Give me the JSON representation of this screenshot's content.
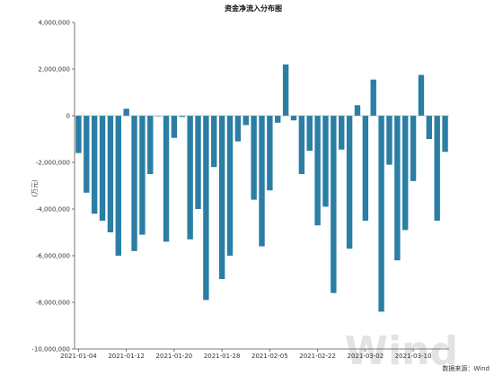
{
  "chart_data": {
    "type": "bar",
    "title": "资金净流入分布图",
    "ylabel": "(万元)",
    "xlabel": "",
    "ylim": [
      -10000000,
      4000000
    ],
    "yticks": [
      4000000,
      2000000,
      0,
      -2000000,
      -4000000,
      -6000000,
      -8000000,
      -10000000
    ],
    "ytick_labels": [
      "4,000,000",
      "2,000,000",
      "0",
      "-2,000,000",
      "-4,000,000",
      "-6,000,000",
      "-8,000,000",
      "-10,000,000"
    ],
    "xtick_labels": [
      {
        "label": "2021-01-04",
        "index": 0
      },
      {
        "label": "2021-01-12",
        "index": 6
      },
      {
        "label": "2021-01-20",
        "index": 12
      },
      {
        "label": "2021-01-28",
        "index": 18
      },
      {
        "label": "2021-02-05",
        "index": 24
      },
      {
        "label": "2021-02-22",
        "index": 30
      },
      {
        "label": "2021-03-02",
        "index": 36
      },
      {
        "label": "2021-03-10",
        "index": 42
      }
    ],
    "values": [
      -1600000,
      -3300000,
      -4200000,
      -4500000,
      -5000000,
      -6000000,
      300000,
      -5800000,
      -5100000,
      -2500000,
      -20000,
      -5400000,
      -950000,
      -50000,
      -5300000,
      -4000000,
      -7900000,
      -2200000,
      -7000000,
      -6000000,
      -1100000,
      -400000,
      -3600000,
      -5600000,
      -3200000,
      -300000,
      2200000,
      -200000,
      -2500000,
      -1500000,
      -4700000,
      -3900000,
      -7600000,
      -1450000,
      -5700000,
      450000,
      -4500000,
      1550000,
      -8400000,
      -2100000,
      -6200000,
      -4900000,
      -2800000,
      1750000,
      -1000000,
      -4500000,
      -1550000
    ],
    "bar_color": "#2b7ea4",
    "grid": false,
    "legend": "none"
  },
  "source_note": "数据来源：Wind",
  "watermark": "Wind"
}
